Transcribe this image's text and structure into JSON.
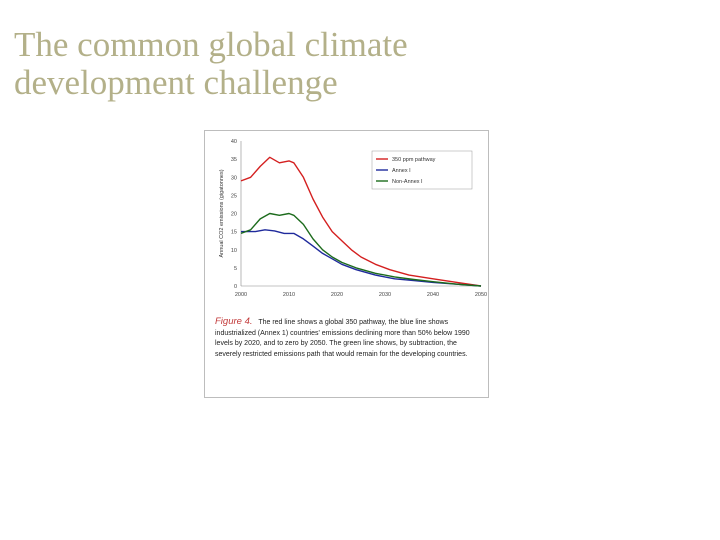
{
  "slide": {
    "title_line1": "The common global climate",
    "title_line2": "development challenge"
  },
  "figure": {
    "caption_label": "Figure 4.",
    "caption_text": "The red line shows a global 350 pathway, the blue line shows industrialized (Annex 1) countries' emissions declining more than 50% below 1990 levels by 2020, and to zero by 2050. The green line shows, by subtraction, the severely restricted emissions path that would remain for the developing countries."
  },
  "chart_data": {
    "type": "line",
    "ylabel": "Annual CO2 emissions (gigatonnes)",
    "xlim": [
      2000,
      2050
    ],
    "ylim": [
      0,
      40
    ],
    "x_ticks": [
      "2000",
      "2010",
      "2020",
      "2030",
      "2040",
      "2050"
    ],
    "y_ticks": [
      "0",
      "5",
      "10",
      "15",
      "20",
      "25",
      "30",
      "35",
      "40"
    ],
    "grid": false,
    "legend_position": "top-right",
    "series": [
      {
        "name": "350 ppm pathway",
        "color": "#d42020",
        "points": [
          [
            2000,
            29
          ],
          [
            2002,
            30
          ],
          [
            2004,
            33
          ],
          [
            2006,
            35.5
          ],
          [
            2008,
            34
          ],
          [
            2010,
            34.5
          ],
          [
            2011,
            34
          ],
          [
            2013,
            30
          ],
          [
            2015,
            24
          ],
          [
            2017,
            19
          ],
          [
            2019,
            15
          ],
          [
            2021,
            12.5
          ],
          [
            2023,
            10
          ],
          [
            2025,
            8
          ],
          [
            2028,
            6
          ],
          [
            2031,
            4.5
          ],
          [
            2035,
            3
          ],
          [
            2040,
            2
          ],
          [
            2045,
            1
          ],
          [
            2050,
            0
          ]
        ]
      },
      {
        "name": "Annex I",
        "color": "#1f2a9c",
        "points": [
          [
            2000,
            15
          ],
          [
            2003,
            15
          ],
          [
            2005,
            15.5
          ],
          [
            2007,
            15.2
          ],
          [
            2009,
            14.5
          ],
          [
            2011,
            14.5
          ],
          [
            2013,
            13
          ],
          [
            2015,
            11
          ],
          [
            2017,
            9
          ],
          [
            2019,
            7.5
          ],
          [
            2021,
            6
          ],
          [
            2024,
            4.5
          ],
          [
            2028,
            3
          ],
          [
            2032,
            2
          ],
          [
            2036,
            1.5
          ],
          [
            2040,
            1
          ],
          [
            2045,
            0.5
          ],
          [
            2050,
            0
          ]
        ]
      },
      {
        "name": "Non-Annex I",
        "color": "#1c6b1c",
        "points": [
          [
            2000,
            14.5
          ],
          [
            2002,
            15.5
          ],
          [
            2004,
            18.5
          ],
          [
            2006,
            20
          ],
          [
            2008,
            19.5
          ],
          [
            2010,
            20
          ],
          [
            2011,
            19.5
          ],
          [
            2013,
            17
          ],
          [
            2015,
            13
          ],
          [
            2017,
            10
          ],
          [
            2019,
            8
          ],
          [
            2021,
            6.5
          ],
          [
            2024,
            5
          ],
          [
            2028,
            3.5
          ],
          [
            2032,
            2.5
          ],
          [
            2036,
            1.8
          ],
          [
            2040,
            1.2
          ],
          [
            2045,
            0.5
          ],
          [
            2050,
            0
          ]
        ]
      }
    ]
  }
}
